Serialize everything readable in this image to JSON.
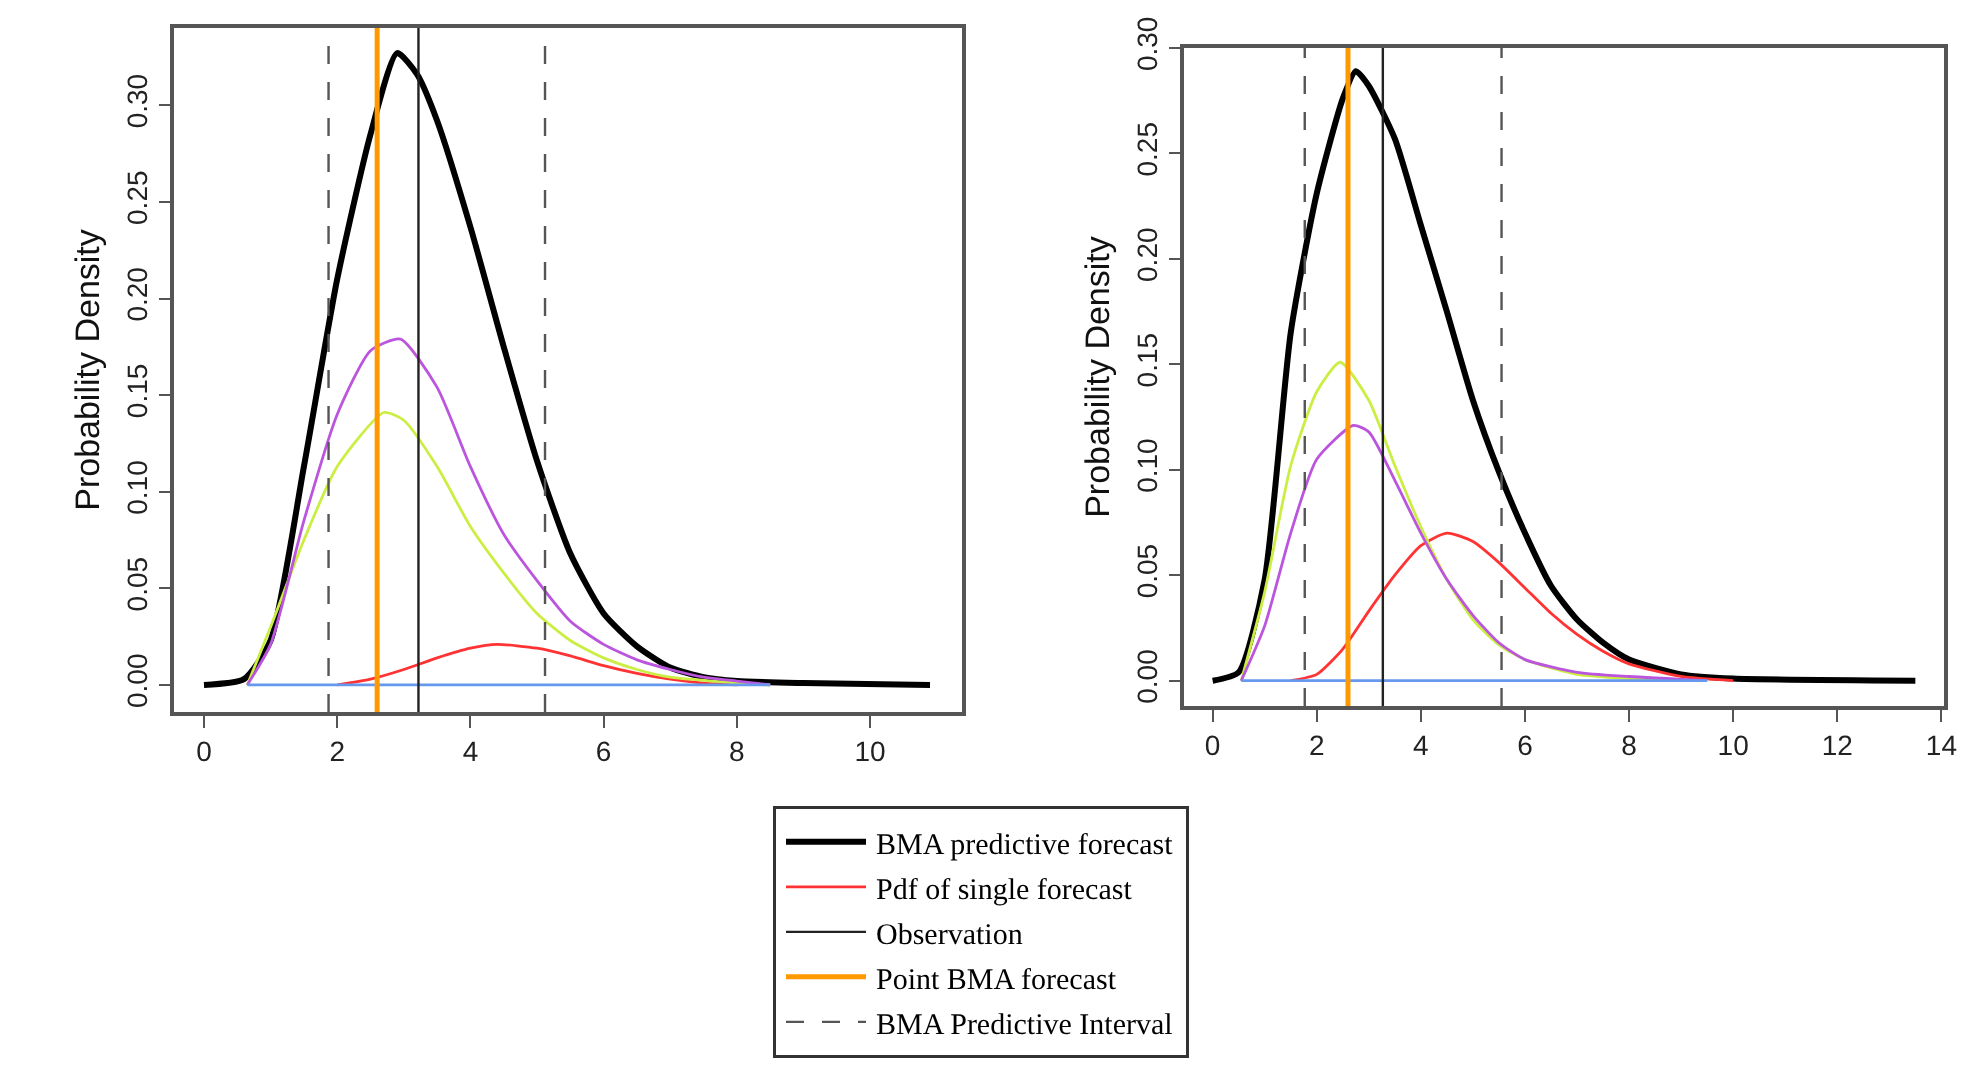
{
  "chart_data": [
    {
      "type": "line",
      "ylabel": "Probability Density",
      "xlim": [
        -0.45,
        11.38
      ],
      "ylim": [
        -0.014,
        0.34
      ],
      "xticks": [
        0,
        2,
        4,
        6,
        8,
        10
      ],
      "yticks": [
        {
          "value": 0,
          "label": "0.00"
        },
        {
          "value": 0.05,
          "label": "0.05"
        },
        {
          "value": 0.1,
          "label": "0.10"
        },
        {
          "value": 0.15,
          "label": "0.15"
        },
        {
          "value": 0.2,
          "label": "0.20"
        },
        {
          "value": 0.25,
          "label": "0.25"
        },
        {
          "value": 0.3,
          "label": "0.30"
        }
      ],
      "legend": "bottom",
      "marker": "none",
      "line_style": "solid",
      "series": [
        {
          "name": "BMA predictive forecast",
          "color": "#000000",
          "x": [
            0,
            0.6,
            1.0,
            1.5,
            2.0,
            2.5,
            2.9,
            3.2,
            3.5,
            4.0,
            4.5,
            5.0,
            5.5,
            6.0,
            6.5,
            7.0,
            7.5,
            8.0,
            9.0,
            10.9
          ],
          "values": [
            0,
            0.003,
            0.023,
            0.113,
            0.21,
            0.285,
            0.327,
            0.316,
            0.292,
            0.237,
            0.175,
            0.116,
            0.068,
            0.037,
            0.02,
            0.009,
            0.004,
            0.002,
            0.001,
            0
          ]
        },
        {
          "name": "Pdf of single forecast",
          "color": "#ff3333",
          "x": [
            2.0,
            2.5,
            3.0,
            3.5,
            4.0,
            4.4,
            5.0,
            5.5,
            6.0,
            6.5,
            7.0,
            7.5,
            8.0
          ],
          "values": [
            0,
            0.003,
            0.008,
            0.014,
            0.019,
            0.021,
            0.019,
            0.015,
            0.01,
            0.006,
            0.003,
            0.001,
            0
          ]
        },
        {
          "color": "#ccee44",
          "x": [
            0.65,
            1.0,
            1.5,
            2.0,
            2.7,
            3.0,
            3.5,
            4.0,
            4.5,
            5.0,
            5.5,
            6.0,
            6.5,
            7.0,
            8.0,
            8.5
          ],
          "values": [
            0,
            0.03,
            0.075,
            0.113,
            0.141,
            0.137,
            0.113,
            0.082,
            0.058,
            0.037,
            0.023,
            0.014,
            0.008,
            0.004,
            0.001,
            0
          ]
        },
        {
          "color": "#bb55dd",
          "x": [
            0.65,
            1.0,
            1.5,
            2.0,
            2.5,
            2.95,
            3.5,
            4.0,
            4.5,
            5.0,
            5.5,
            6.0,
            6.5,
            7.0,
            7.5,
            8.0,
            8.5
          ],
          "values": [
            0,
            0.021,
            0.085,
            0.14,
            0.173,
            0.179,
            0.154,
            0.113,
            0.078,
            0.054,
            0.033,
            0.021,
            0.013,
            0.008,
            0.004,
            0.002,
            0
          ]
        },
        {
          "color": "#6699ee",
          "x": [
            0.65,
            8.5
          ],
          "values": [
            0,
            0
          ]
        }
      ],
      "ref_lines": [
        {
          "axis": "x",
          "value": 3.22,
          "label": "Observation",
          "color": "#222222",
          "line_style": "solid"
        },
        {
          "axis": "x",
          "value": 2.6,
          "label": "Point BMA forecast",
          "color": "#ff9900",
          "line_style": "solid"
        },
        {
          "axis": "x",
          "value": 1.87,
          "label": "BMA Predictive Interval",
          "color": "#555555",
          "line_style": "dashed"
        },
        {
          "axis": "x",
          "value": 5.12,
          "color": "#555555",
          "line_style": "dashed"
        }
      ]
    },
    {
      "type": "line",
      "ylabel": "Probability Density",
      "xlim": [
        -0.55,
        14.05
      ],
      "ylim": [
        -0.012,
        0.3
      ],
      "xticks": [
        0,
        2,
        4,
        6,
        8,
        10,
        12,
        14
      ],
      "yticks": [
        {
          "value": 0,
          "label": "0.00"
        },
        {
          "value": 0.05,
          "label": "0.05"
        },
        {
          "value": 0.1,
          "label": "0.10"
        },
        {
          "value": 0.15,
          "label": "0.15"
        },
        {
          "value": 0.2,
          "label": "0.20"
        },
        {
          "value": 0.25,
          "label": "0.25"
        },
        {
          "value": 0.3,
          "label": "0.30"
        }
      ],
      "marker": "none",
      "line_style": "solid",
      "series": [
        {
          "color": "#000000",
          "x": [
            0,
            0.5,
            1.0,
            1.5,
            2.0,
            2.5,
            2.75,
            3.0,
            3.5,
            4.0,
            4.5,
            5.0,
            5.5,
            6.0,
            6.5,
            7.0,
            7.5,
            8.0,
            9.0,
            10.0,
            13.5
          ],
          "values": [
            0,
            0.004,
            0.048,
            0.165,
            0.231,
            0.276,
            0.289,
            0.282,
            0.257,
            0.216,
            0.175,
            0.133,
            0.099,
            0.07,
            0.045,
            0.029,
            0.018,
            0.01,
            0.003,
            0.001,
            0
          ]
        },
        {
          "color": "#ff3333",
          "x": [
            1.5,
            2.0,
            2.5,
            3.0,
            3.5,
            4.0,
            4.5,
            5.0,
            5.5,
            6.0,
            6.5,
            7.0,
            7.5,
            8.0,
            9.0,
            10.0
          ],
          "values": [
            0,
            0.003,
            0.015,
            0.033,
            0.05,
            0.064,
            0.07,
            0.066,
            0.056,
            0.044,
            0.032,
            0.022,
            0.014,
            0.008,
            0.002,
            0
          ]
        },
        {
          "color": "#ccee44",
          "x": [
            0.55,
            1.0,
            1.5,
            2.0,
            2.45,
            3.0,
            3.5,
            4.0,
            4.5,
            5.0,
            5.5,
            6.0,
            7.0,
            8.0,
            9.0
          ],
          "values": [
            0,
            0.042,
            0.102,
            0.137,
            0.151,
            0.133,
            0.102,
            0.073,
            0.048,
            0.029,
            0.017,
            0.01,
            0.003,
            0.001,
            0
          ]
        },
        {
          "color": "#bb55dd",
          "x": [
            0.55,
            1.0,
            1.5,
            2.0,
            2.7,
            3.0,
            3.5,
            4.0,
            4.5,
            5.0,
            5.5,
            6.0,
            7.0,
            8.0,
            9.5
          ],
          "values": [
            0,
            0.026,
            0.07,
            0.105,
            0.121,
            0.118,
            0.095,
            0.07,
            0.048,
            0.031,
            0.018,
            0.01,
            0.004,
            0.002,
            0
          ]
        },
        {
          "color": "#6699ee",
          "x": [
            0.55,
            9.5
          ],
          "values": [
            0,
            0
          ]
        }
      ],
      "ref_lines": [
        {
          "axis": "x",
          "value": 3.27,
          "color": "#222222",
          "line_style": "solid"
        },
        {
          "axis": "x",
          "value": 2.6,
          "color": "#ff9900",
          "line_style": "solid"
        },
        {
          "axis": "x",
          "value": 1.77,
          "color": "#555555",
          "line_style": "dashed"
        },
        {
          "axis": "x",
          "value": 5.55,
          "color": "#555555",
          "line_style": "dashed"
        }
      ]
    }
  ]
}
